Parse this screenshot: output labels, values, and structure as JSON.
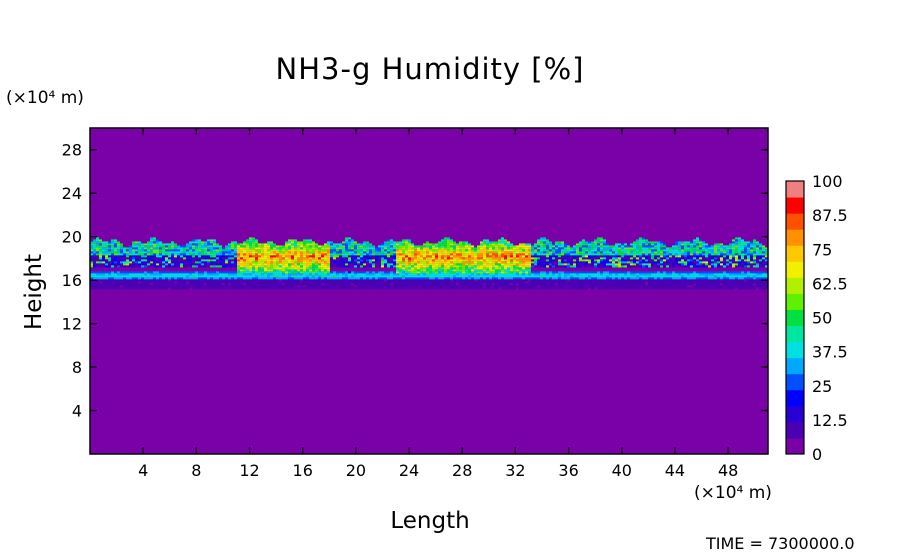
{
  "chart_data": {
    "type": "heatmap",
    "title": "NH3-g Humidity [%]",
    "xlabel": "Length",
    "ylabel": "Height",
    "x_unit": "(×10⁴ m)",
    "y_unit": "(×10⁴ m)",
    "xlim": [
      0,
      51
    ],
    "ylim": [
      0,
      30
    ],
    "x_ticks": [
      4,
      8,
      12,
      16,
      20,
      24,
      28,
      32,
      36,
      40,
      44,
      48
    ],
    "y_ticks": [
      4,
      8,
      12,
      16,
      20,
      24,
      28
    ],
    "colorbar": {
      "min": 0,
      "max": 100,
      "labels": [
        "100",
        "87.5",
        "75",
        "62.5",
        "50",
        "37.5",
        "25",
        "12.5",
        "0"
      ],
      "colors": [
        "#7a00a8",
        "#4b00b4",
        "#2800d2",
        "#0000ff",
        "#0050ff",
        "#00a8ff",
        "#00e0e0",
        "#00e6a0",
        "#00e040",
        "#60f000",
        "#b0f000",
        "#f0f000",
        "#ffc800",
        "#ff9000",
        "#ff5000",
        "#ff0000",
        "#f08080"
      ],
      "background": "#7a00a8"
    },
    "band": {
      "y_low": 15.8,
      "y_high": 20.0,
      "dense_ranges_x": [
        [
          11,
          18
        ],
        [
          23,
          33
        ]
      ],
      "peak_value": 100
    },
    "footer": "TIME = 7300000.0"
  }
}
